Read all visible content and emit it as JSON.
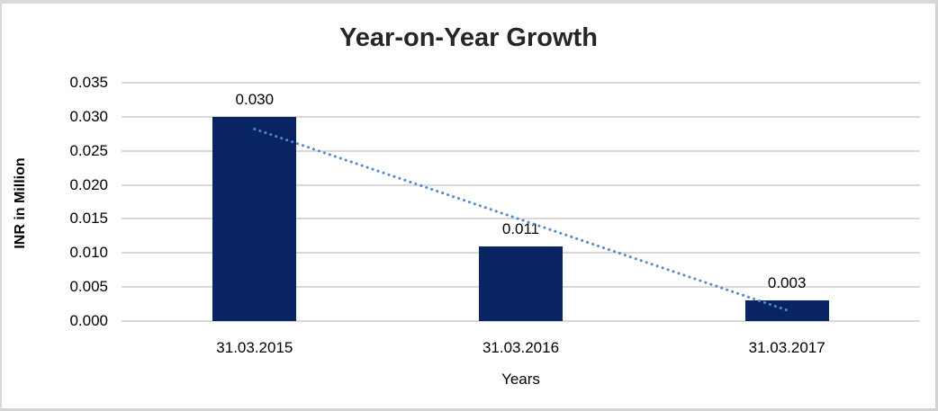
{
  "chart_data": {
    "type": "bar",
    "title": "Year-on-Year Growth",
    "ylabel": "INR in Million",
    "xlabel": "Years",
    "categories": [
      "31.03.2015",
      "31.03.2016",
      "31.03.2017"
    ],
    "values": [
      0.03,
      0.011,
      0.003
    ],
    "data_labels": [
      "0.030",
      "0.011",
      "0.003"
    ],
    "ylim": [
      0,
      0.035
    ],
    "ytick_step": 0.005,
    "ytick_labels": [
      "0.000",
      "0.005",
      "0.010",
      "0.015",
      "0.020",
      "0.025",
      "0.030",
      "0.035"
    ],
    "grid": true,
    "legend": false,
    "trendline": {
      "style": "dotted",
      "start_value": 0.0282,
      "end_value": 0.0016
    },
    "colors": {
      "bar": "#082462",
      "trendline": "#5089CC",
      "gridline": "#D9D9D9",
      "title_text": "#262626",
      "label_text": "#000000",
      "border": "#D9D9D9",
      "background": "#FFFFFF"
    }
  }
}
